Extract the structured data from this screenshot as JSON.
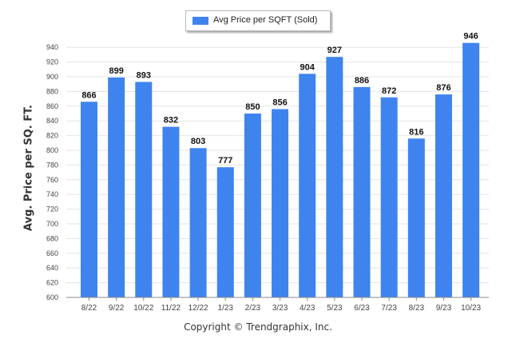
{
  "chart_data": {
    "type": "bar",
    "title": "",
    "xlabel": "",
    "ylabel": "Avg. Price per SQ. FT.",
    "categories": [
      "8/22",
      "9/22",
      "10/22",
      "11/22",
      "12/22",
      "1/23",
      "2/23",
      "3/23",
      "4/23",
      "5/23",
      "6/23",
      "7/23",
      "8/23",
      "9/23",
      "10/23"
    ],
    "series": [
      {
        "name": "Avg Price per SQFT (Sold)",
        "values": [
          866,
          899,
          893,
          832,
          803,
          777,
          850,
          856,
          904,
          927,
          886,
          872,
          816,
          876,
          946
        ]
      }
    ],
    "ylim": [
      600,
      950
    ],
    "yticks": [
      600,
      620,
      640,
      660,
      680,
      700,
      720,
      740,
      760,
      780,
      800,
      820,
      840,
      860,
      880,
      900,
      920,
      940
    ],
    "grid": true,
    "legend_position": "top-center",
    "colors": {
      "bar": "#3f84ee",
      "grid": "#e3e3e3",
      "axis": "#888888"
    }
  },
  "footer": "Copyright © Trendgraphix, Inc."
}
